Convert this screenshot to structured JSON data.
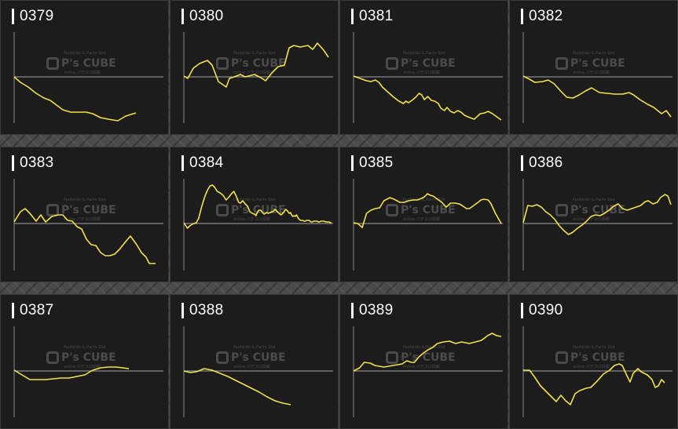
{
  "colors": {
    "line": "#f2e24a",
    "axis": "#8a8a8a",
    "panel": "#1c1c1c",
    "text": "#ffffff"
  },
  "watermark": {
    "brand": "P's CUBE",
    "top": "Pachinko & Pachi-Slot",
    "sub": "online パチスロ情報"
  },
  "panels": [
    {
      "id": "0379",
      "points": [
        [
          0,
          97
        ],
        [
          8,
          104
        ],
        [
          18,
          110
        ],
        [
          28,
          118
        ],
        [
          38,
          124
        ],
        [
          46,
          127
        ],
        [
          54,
          133
        ],
        [
          62,
          139
        ],
        [
          72,
          142
        ],
        [
          82,
          142
        ],
        [
          92,
          142
        ],
        [
          100,
          144
        ],
        [
          110,
          149
        ],
        [
          120,
          151
        ],
        [
          132,
          153
        ],
        [
          142,
          147
        ],
        [
          155,
          143
        ]
      ]
    },
    {
      "id": "0380",
      "points": [
        [
          0,
          96
        ],
        [
          5,
          99
        ],
        [
          12,
          86
        ],
        [
          20,
          80
        ],
        [
          30,
          76
        ],
        [
          36,
          82
        ],
        [
          44,
          103
        ],
        [
          54,
          110
        ],
        [
          58,
          99
        ],
        [
          64,
          97
        ],
        [
          72,
          94
        ],
        [
          78,
          97
        ],
        [
          90,
          94
        ],
        [
          98,
          98
        ],
        [
          104,
          102
        ],
        [
          112,
          92
        ],
        [
          120,
          84
        ],
        [
          128,
          82
        ],
        [
          134,
          60
        ],
        [
          140,
          57
        ],
        [
          148,
          59
        ],
        [
          158,
          57
        ],
        [
          164,
          62
        ],
        [
          170,
          54
        ],
        [
          178,
          63
        ],
        [
          184,
          72
        ]
      ]
    },
    {
      "id": "0381",
      "points": [
        [
          0,
          96
        ],
        [
          10,
          98
        ],
        [
          20,
          100
        ],
        [
          30,
          102
        ],
        [
          40,
          103
        ],
        [
          50,
          101
        ],
        [
          58,
          104
        ],
        [
          66,
          110
        ],
        [
          80,
          117
        ],
        [
          92,
          123
        ],
        [
          104,
          128
        ],
        [
          114,
          131
        ],
        [
          120,
          128
        ],
        [
          126,
          130
        ],
        [
          136,
          126
        ],
        [
          144,
          122
        ],
        [
          150,
          118
        ],
        [
          156,
          120
        ],
        [
          162,
          126
        ],
        [
          170,
          122
        ],
        [
          178,
          127
        ],
        [
          186,
          128
        ],
        [
          194,
          131
        ],
        [
          200,
          137
        ],
        [
          208,
          140
        ],
        [
          214,
          136
        ],
        [
          222,
          141
        ],
        [
          230,
          143
        ],
        [
          238,
          140
        ],
        [
          246,
          142
        ],
        [
          254,
          146
        ],
        [
          262,
          148
        ],
        [
          276,
          151
        ],
        [
          282,
          148
        ],
        [
          290,
          144
        ],
        [
          300,
          143
        ],
        [
          308,
          141
        ],
        [
          318,
          144
        ],
        [
          328,
          148
        ],
        [
          338,
          152
        ]
      ]
    },
    {
      "id": "0382",
      "points": [
        [
          0,
          96
        ],
        [
          8,
          100
        ],
        [
          15,
          104
        ],
        [
          25,
          103
        ],
        [
          32,
          101
        ],
        [
          40,
          106
        ],
        [
          48,
          115
        ],
        [
          56,
          123
        ],
        [
          64,
          124
        ],
        [
          72,
          120
        ],
        [
          80,
          115
        ],
        [
          88,
          111
        ],
        [
          98,
          117
        ],
        [
          108,
          118
        ],
        [
          118,
          119
        ],
        [
          128,
          119
        ],
        [
          136,
          117
        ],
        [
          142,
          120
        ],
        [
          150,
          126
        ],
        [
          160,
          132
        ],
        [
          168,
          136
        ],
        [
          178,
          144
        ],
        [
          184,
          140
        ],
        [
          190,
          148
        ]
      ]
    },
    {
      "id": "0383",
      "points": [
        [
          0,
          95
        ],
        [
          8,
          82
        ],
        [
          14,
          78
        ],
        [
          20,
          84
        ],
        [
          28,
          94
        ],
        [
          34,
          86
        ],
        [
          40,
          95
        ],
        [
          48,
          88
        ],
        [
          56,
          86
        ],
        [
          62,
          86
        ],
        [
          68,
          93
        ],
        [
          74,
          94
        ],
        [
          80,
          101
        ],
        [
          86,
          104
        ],
        [
          92,
          117
        ],
        [
          98,
          124
        ],
        [
          104,
          125
        ],
        [
          110,
          134
        ],
        [
          116,
          138
        ],
        [
          122,
          138
        ],
        [
          128,
          136
        ],
        [
          134,
          130
        ],
        [
          142,
          120
        ],
        [
          148,
          113
        ],
        [
          156,
          124
        ],
        [
          162,
          134
        ],
        [
          168,
          140
        ],
        [
          172,
          148
        ],
        [
          180,
          148
        ]
      ]
    },
    {
      "id": "0384",
      "points": [
        [
          0,
          96
        ],
        [
          12,
          103
        ],
        [
          20,
          100
        ],
        [
          28,
          98
        ],
        [
          34,
          97
        ],
        [
          42,
          96
        ],
        [
          50,
          90
        ],
        [
          58,
          78
        ],
        [
          66,
          68
        ],
        [
          72,
          61
        ],
        [
          80,
          54
        ],
        [
          88,
          49
        ],
        [
          96,
          48
        ],
        [
          104,
          51
        ],
        [
          112,
          56
        ],
        [
          122,
          58
        ],
        [
          132,
          61
        ],
        [
          142,
          67
        ],
        [
          152,
          63
        ],
        [
          160,
          59
        ],
        [
          168,
          56
        ],
        [
          176,
          62
        ],
        [
          184,
          70
        ],
        [
          190,
          71
        ],
        [
          198,
          68
        ],
        [
          206,
          72
        ],
        [
          214,
          75
        ],
        [
          222,
          82
        ],
        [
          230,
          84
        ],
        [
          238,
          85
        ],
        [
          242,
          87
        ],
        [
          248,
          82
        ],
        [
          252,
          80
        ],
        [
          258,
          80
        ],
        [
          264,
          83
        ],
        [
          270,
          85
        ],
        [
          278,
          83
        ],
        [
          284,
          84
        ],
        [
          290,
          83
        ],
        [
          296,
          82
        ],
        [
          302,
          81
        ],
        [
          306,
          79
        ],
        [
          310,
          80
        ],
        [
          314,
          82
        ],
        [
          320,
          84
        ],
        [
          326,
          86
        ],
        [
          330,
          85
        ],
        [
          336,
          82
        ],
        [
          342,
          79
        ],
        [
          346,
          80
        ],
        [
          350,
          82
        ],
        [
          354,
          84
        ],
        [
          358,
          83
        ],
        [
          362,
          86
        ],
        [
          366,
          88
        ],
        [
          370,
          87
        ],
        [
          374,
          88
        ],
        [
          378,
          86
        ],
        [
          380,
          87
        ],
        [
          384,
          90
        ],
        [
          388,
          92
        ],
        [
          392,
          93
        ],
        [
          396,
          93
        ],
        [
          400,
          93
        ],
        [
          404,
          94
        ],
        [
          408,
          94
        ],
        [
          412,
          93
        ],
        [
          416,
          93
        ],
        [
          420,
          93
        ],
        [
          424,
          94
        ],
        [
          428,
          95
        ],
        [
          432,
          95
        ],
        [
          436,
          94
        ],
        [
          440,
          94
        ],
        [
          444,
          94
        ],
        [
          448,
          94
        ],
        [
          452,
          95
        ],
        [
          456,
          95
        ],
        [
          460,
          94
        ],
        [
          464,
          94
        ],
        [
          468,
          94
        ],
        [
          472,
          94
        ],
        [
          476,
          95
        ],
        [
          480,
          95
        ],
        [
          484,
          95
        ],
        [
          488,
          95
        ],
        [
          492,
          96
        ],
        [
          496,
          96
        ]
      ]
    },
    {
      "id": "0385",
      "points": [
        [
          0,
          96
        ],
        [
          6,
          97
        ],
        [
          12,
          102
        ],
        [
          18,
          84
        ],
        [
          24,
          80
        ],
        [
          30,
          78
        ],
        [
          36,
          77
        ],
        [
          42,
          68
        ],
        [
          50,
          64
        ],
        [
          56,
          66
        ],
        [
          60,
          68
        ],
        [
          64,
          70
        ],
        [
          70,
          70
        ],
        [
          76,
          68
        ],
        [
          82,
          67
        ],
        [
          88,
          67
        ],
        [
          94,
          65
        ],
        [
          98,
          63
        ],
        [
          102,
          59
        ],
        [
          106,
          61
        ],
        [
          110,
          62
        ],
        [
          116,
          66
        ],
        [
          122,
          70
        ],
        [
          128,
          76
        ],
        [
          134,
          71
        ],
        [
          140,
          71
        ],
        [
          146,
          72
        ],
        [
          150,
          74
        ],
        [
          156,
          78
        ],
        [
          160,
          78
        ],
        [
          166,
          74
        ],
        [
          172,
          70
        ],
        [
          176,
          67
        ],
        [
          180,
          66
        ],
        [
          186,
          67
        ],
        [
          190,
          72
        ],
        [
          196,
          84
        ],
        [
          204,
          97
        ]
      ]
    },
    {
      "id": "0386",
      "points": [
        [
          0,
          96
        ],
        [
          6,
          74
        ],
        [
          12,
          75
        ],
        [
          18,
          73
        ],
        [
          24,
          76
        ],
        [
          30,
          82
        ],
        [
          36,
          86
        ],
        [
          42,
          92
        ],
        [
          48,
          100
        ],
        [
          54,
          106
        ],
        [
          60,
          111
        ],
        [
          66,
          108
        ],
        [
          72,
          103
        ],
        [
          78,
          99
        ],
        [
          84,
          94
        ],
        [
          90,
          88
        ],
        [
          96,
          86
        ],
        [
          102,
          87
        ],
        [
          108,
          84
        ],
        [
          114,
          80
        ],
        [
          120,
          75
        ],
        [
          126,
          72
        ],
        [
          132,
          78
        ],
        [
          138,
          80
        ],
        [
          144,
          78
        ],
        [
          150,
          76
        ],
        [
          156,
          74
        ],
        [
          162,
          69
        ],
        [
          166,
          68
        ],
        [
          172,
          72
        ],
        [
          178,
          70
        ],
        [
          182,
          64
        ],
        [
          188,
          60
        ],
        [
          192,
          62
        ],
        [
          196,
          73
        ]
      ]
    },
    {
      "id": "0387",
      "points": [
        [
          0,
          96
        ],
        [
          10,
          102
        ],
        [
          20,
          108
        ],
        [
          30,
          108
        ],
        [
          40,
          108
        ],
        [
          50,
          107
        ],
        [
          60,
          106
        ],
        [
          70,
          106
        ],
        [
          80,
          104
        ],
        [
          90,
          102
        ],
        [
          100,
          96
        ],
        [
          110,
          93
        ],
        [
          120,
          92
        ],
        [
          130,
          92
        ],
        [
          138,
          93
        ],
        [
          146,
          94
        ]
      ]
    },
    {
      "id": "0388",
      "points": [
        [
          0,
          97
        ],
        [
          8,
          99
        ],
        [
          16,
          98
        ],
        [
          26,
          94
        ],
        [
          36,
          96
        ],
        [
          46,
          100
        ],
        [
          56,
          104
        ],
        [
          66,
          109
        ],
        [
          76,
          114
        ],
        [
          86,
          119
        ],
        [
          96,
          124
        ],
        [
          106,
          130
        ],
        [
          116,
          135
        ],
        [
          126,
          138
        ],
        [
          136,
          140
        ]
      ]
    },
    {
      "id": "0389",
      "points": [
        [
          0,
          97
        ],
        [
          8,
          93
        ],
        [
          14,
          86
        ],
        [
          22,
          87
        ],
        [
          28,
          90
        ],
        [
          34,
          91
        ],
        [
          40,
          92
        ],
        [
          46,
          91
        ],
        [
          52,
          90
        ],
        [
          58,
          89
        ],
        [
          64,
          88
        ],
        [
          70,
          84
        ],
        [
          76,
          86
        ],
        [
          80,
          86
        ],
        [
          86,
          79
        ],
        [
          92,
          74
        ],
        [
          98,
          70
        ],
        [
          104,
          67
        ],
        [
          110,
          62
        ],
        [
          118,
          60
        ],
        [
          126,
          59
        ],
        [
          134,
          62
        ],
        [
          142,
          60
        ],
        [
          152,
          62
        ],
        [
          160,
          60
        ],
        [
          168,
          58
        ],
        [
          176,
          52
        ],
        [
          182,
          49
        ],
        [
          188,
          52
        ],
        [
          194,
          53
        ]
      ]
    },
    {
      "id": "0390",
      "points": [
        [
          0,
          96
        ],
        [
          8,
          96
        ],
        [
          14,
          104
        ],
        [
          22,
          116
        ],
        [
          30,
          124
        ],
        [
          36,
          130
        ],
        [
          42,
          136
        ],
        [
          48,
          128
        ],
        [
          54,
          135
        ],
        [
          60,
          140
        ],
        [
          66,
          126
        ],
        [
          72,
          122
        ],
        [
          80,
          119
        ],
        [
          86,
          118
        ],
        [
          94,
          110
        ],
        [
          102,
          101
        ],
        [
          110,
          96
        ],
        [
          116,
          90
        ],
        [
          122,
          88
        ],
        [
          126,
          90
        ],
        [
          132,
          103
        ],
        [
          136,
          111
        ],
        [
          140,
          100
        ],
        [
          146,
          94
        ],
        [
          150,
          98
        ],
        [
          158,
          102
        ],
        [
          164,
          108
        ],
        [
          168,
          118
        ],
        [
          172,
          116
        ],
        [
          176,
          108
        ],
        [
          180,
          112
        ]
      ]
    }
  ]
}
